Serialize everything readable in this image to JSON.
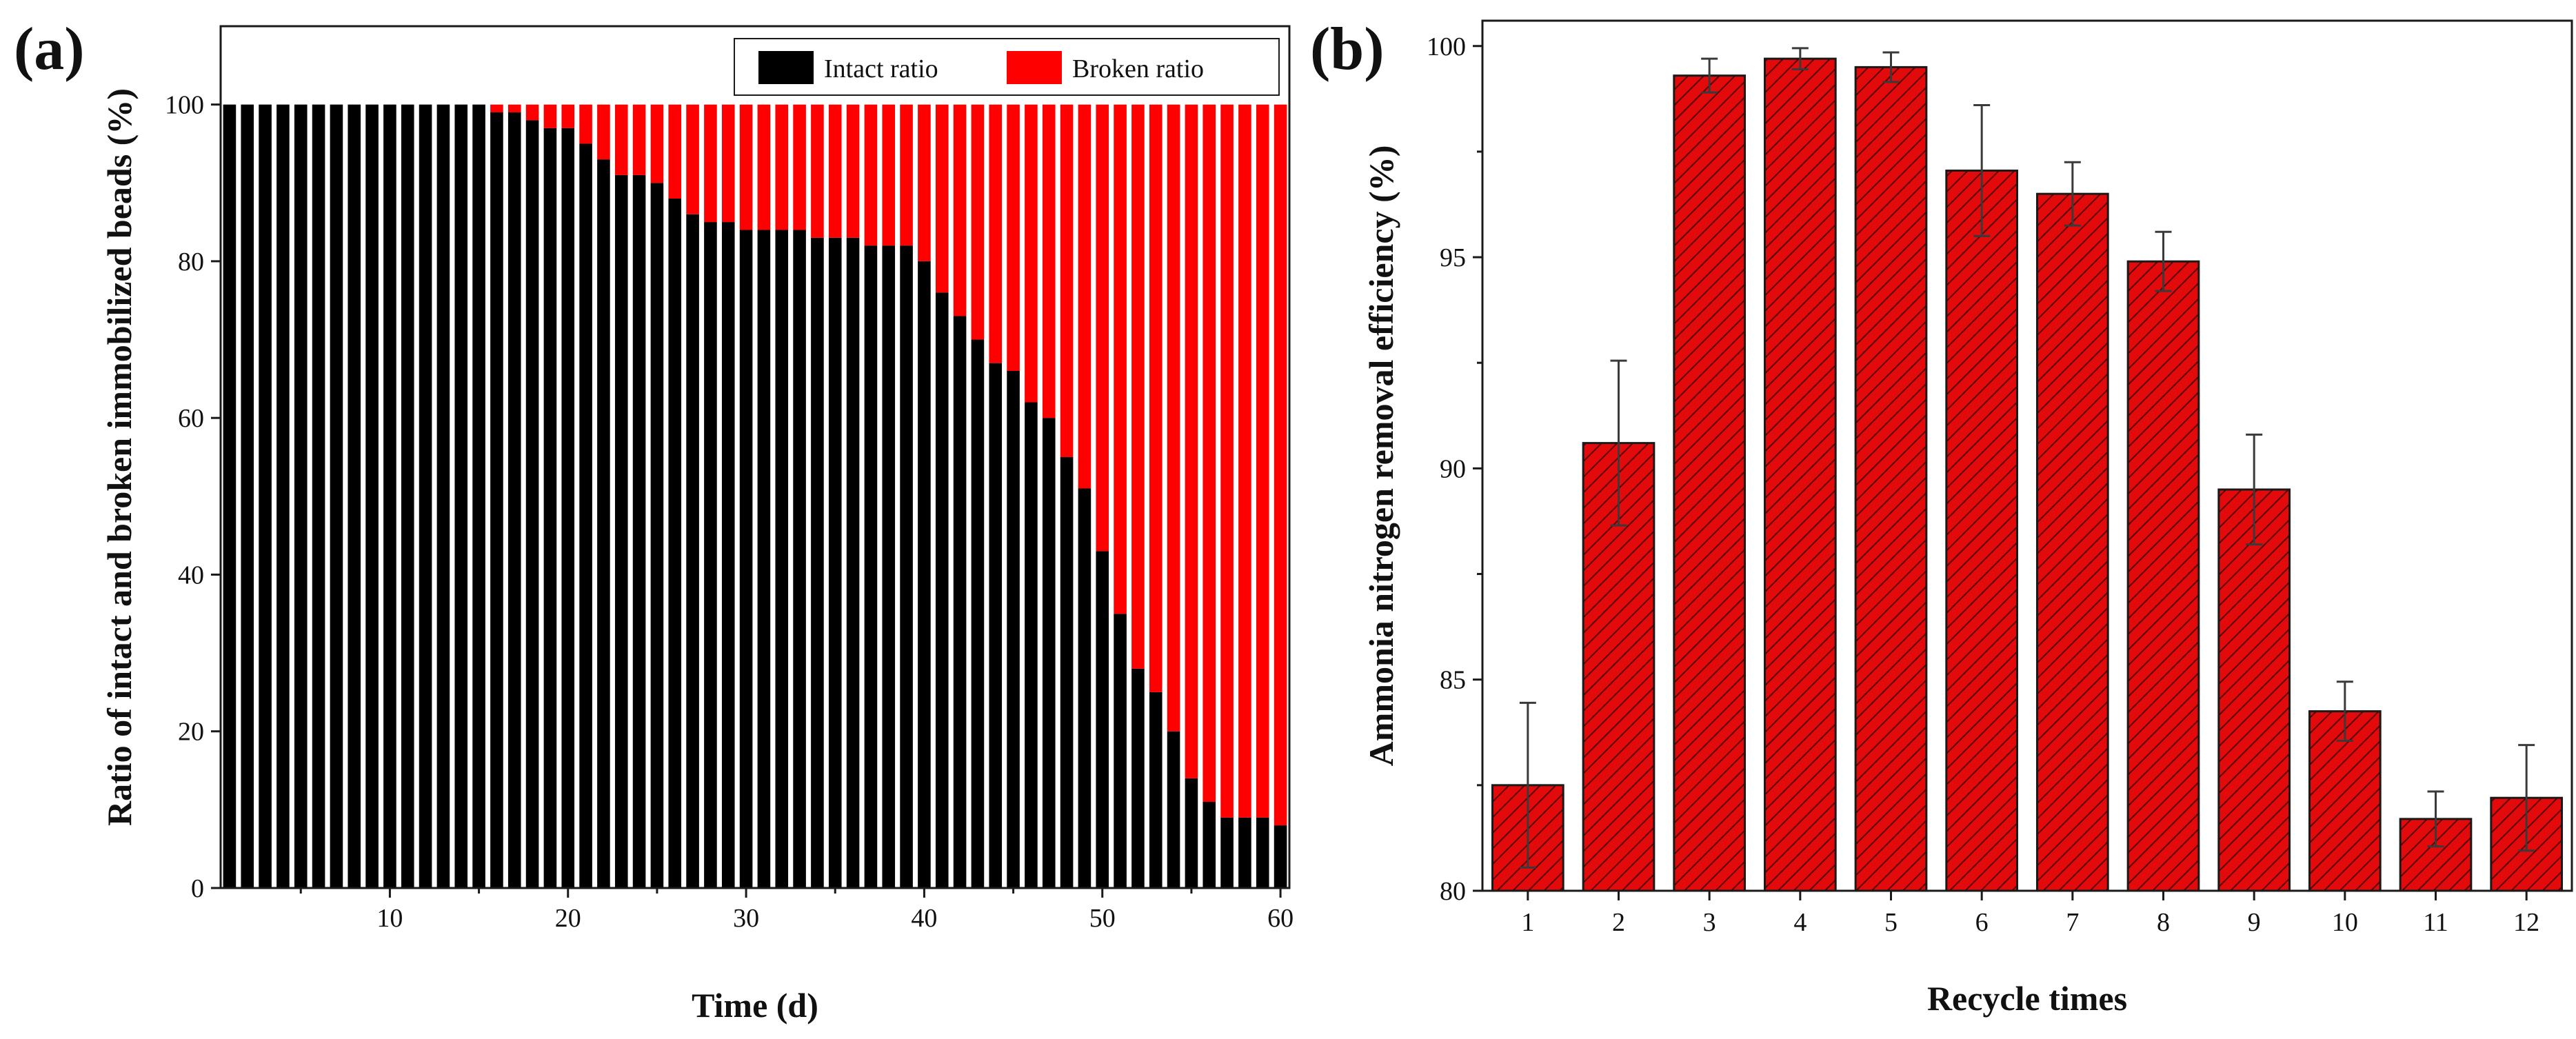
{
  "figure": {
    "panels": [
      "(a)",
      "(b)"
    ]
  },
  "chart_data": [
    {
      "id": "a",
      "type": "bar",
      "stacked": true,
      "title": "",
      "xlabel": "Time (d)",
      "ylabel": "Ratio of intact and broken immobilized beads (%)",
      "xlim": [
        0.5,
        60.5
      ],
      "ylim": [
        0,
        110
      ],
      "xticks": [
        10,
        20,
        30,
        40,
        50,
        60
      ],
      "yticks": [
        0,
        20,
        40,
        60,
        80,
        100
      ],
      "legend_position": "top-right",
      "x": [
        1,
        2,
        3,
        4,
        5,
        6,
        7,
        8,
        9,
        10,
        11,
        12,
        13,
        14,
        15,
        16,
        17,
        18,
        19,
        20,
        21,
        22,
        23,
        24,
        25,
        26,
        27,
        28,
        29,
        30,
        31,
        32,
        33,
        34,
        35,
        36,
        37,
        38,
        39,
        40,
        41,
        42,
        43,
        44,
        45,
        46,
        47,
        48,
        49,
        50,
        51,
        52,
        53,
        54,
        55,
        56,
        57,
        58,
        59,
        60
      ],
      "series": [
        {
          "name": "Intact ratio",
          "color": "#000000",
          "values": [
            100,
            100,
            100,
            100,
            100,
            100,
            100,
            100,
            100,
            100,
            100,
            100,
            100,
            100,
            100,
            99,
            99,
            98,
            97,
            97,
            95,
            93,
            91,
            91,
            90,
            88,
            86,
            85,
            85,
            84,
            84,
            84,
            84,
            83,
            83,
            83,
            82,
            82,
            82,
            80,
            76,
            73,
            70,
            67,
            66,
            62,
            60,
            55,
            51,
            43,
            35,
            28,
            25,
            20,
            14,
            11,
            9,
            9,
            9,
            8
          ]
        },
        {
          "name": "Broken ratio",
          "color": "#ff0000",
          "values": [
            0,
            0,
            0,
            0,
            0,
            0,
            0,
            0,
            0,
            0,
            0,
            0,
            0,
            0,
            0,
            1,
            1,
            2,
            3,
            3,
            5,
            7,
            9,
            9,
            10,
            12,
            14,
            15,
            15,
            16,
            16,
            16,
            16,
            17,
            17,
            17,
            18,
            18,
            18,
            20,
            24,
            27,
            30,
            33,
            34,
            38,
            40,
            45,
            49,
            57,
            65,
            72,
            75,
            80,
            86,
            89,
            91,
            91,
            91,
            92
          ]
        }
      ]
    },
    {
      "id": "b",
      "type": "bar",
      "title": "",
      "xlabel": "Recycle times",
      "ylabel": "Ammonia nitrogen removal efficiency (%)",
      "ylim": [
        80,
        100.6
      ],
      "yticks": [
        80,
        85,
        90,
        95,
        100
      ],
      "categories": [
        "1",
        "2",
        "3",
        "4",
        "5",
        "6",
        "7",
        "8",
        "9",
        "10",
        "11",
        "12"
      ],
      "bar_color": "#e20a0a",
      "values": [
        82.5,
        90.6,
        99.3,
        99.7,
        99.5,
        97.05,
        96.5,
        94.9,
        89.5,
        84.25,
        81.7,
        82.2
      ],
      "errors": [
        1.95,
        1.95,
        0.4,
        0.25,
        0.35,
        1.55,
        0.75,
        0.7,
        1.3,
        0.7,
        0.65,
        1.25
      ]
    }
  ]
}
